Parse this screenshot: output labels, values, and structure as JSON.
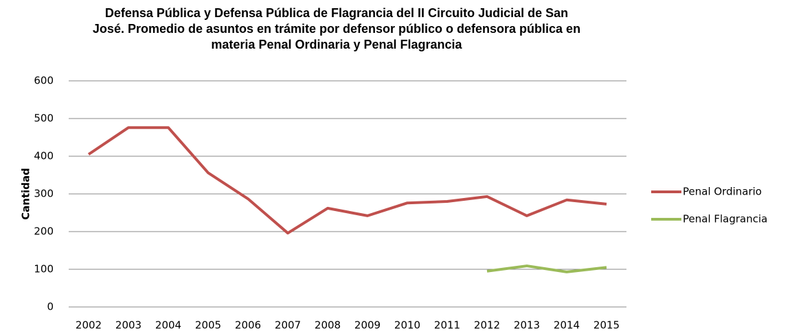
{
  "chart_data": {
    "type": "line",
    "title": [
      "Defensa Pública  y Defensa Pública de Flagrancia del II Circuito Judicial de San",
      "José. Promedio de asuntos en trámite por defensor público o defensora pública en",
      "materia Penal Ordinaria y Penal Flagrancia"
    ],
    "y_label": "Cantidad",
    "categories": [
      "2002",
      "2003",
      "2004",
      "2005",
      "2006",
      "2007",
      "2008",
      "2009",
      "2010",
      "2011",
      "2012",
      "2013",
      "2014",
      "2015"
    ],
    "series": [
      {
        "name": "Penal Ordinario",
        "color": "#c0504d",
        "values": [
          405,
          476,
          476,
          356,
          287,
          196,
          262,
          242,
          276,
          280,
          293,
          242,
          284,
          273
        ]
      },
      {
        "name": "Penal Flagrancia",
        "color": "#9bbb59",
        "values": [
          null,
          null,
          null,
          null,
          null,
          null,
          null,
          null,
          null,
          null,
          95,
          109,
          93,
          105
        ]
      }
    ],
    "ylim": [
      0,
      600
    ],
    "yticks": [
      0,
      100,
      200,
      300,
      400,
      500,
      600
    ],
    "grid": true,
    "legend": "right"
  }
}
